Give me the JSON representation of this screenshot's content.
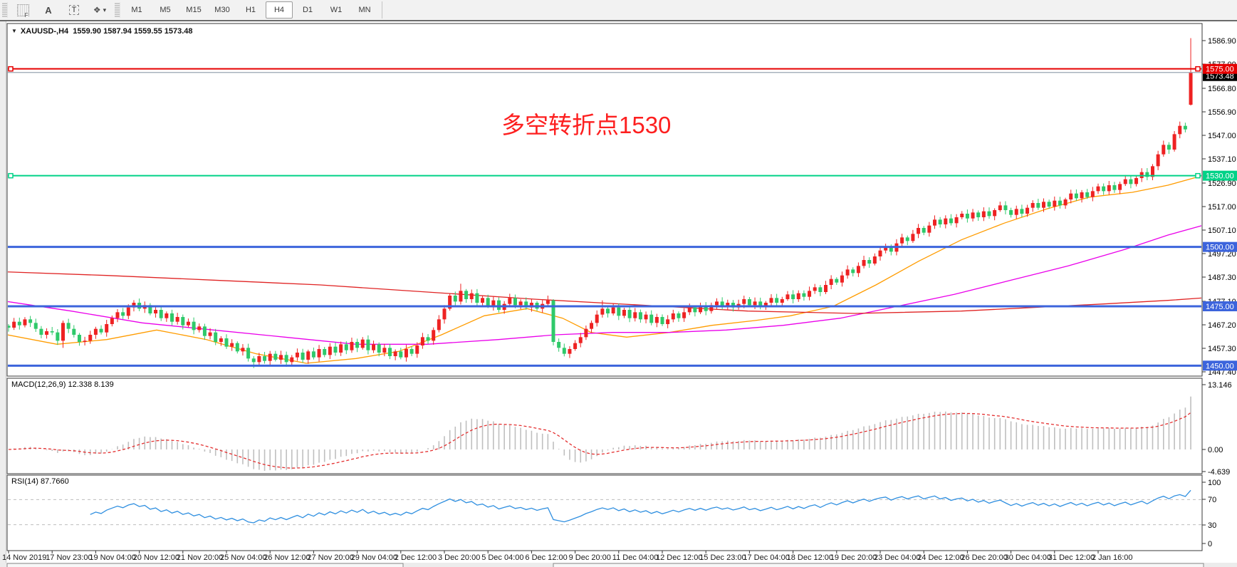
{
  "toolbar": {
    "tools": [
      {
        "name": "chart-grid-tool",
        "glyph": "F"
      },
      {
        "name": "text-annotation-tool",
        "glyph": "A"
      },
      {
        "name": "text-label-tool",
        "glyph": "T"
      },
      {
        "name": "shapes-tool",
        "glyph": "❖"
      },
      {
        "name": "shapes-dropdown",
        "glyph": "▾"
      }
    ],
    "timeframes": [
      "M1",
      "M5",
      "M15",
      "M30",
      "H1",
      "H4",
      "D1",
      "W1",
      "MN"
    ],
    "selected_timeframe": "H4"
  },
  "header": {
    "symbol": "XAUUSD-,H4",
    "ohlc_text": "1559.90 1587.94 1559.55 1573.48",
    "dropdown_glyph": "▼"
  },
  "annotation": {
    "text": "多空转折点1530",
    "color": "#fd1f1f"
  },
  "chart_data": [
    {
      "type": "candlestick",
      "title": "XAUUSD- H4",
      "convention": "red-up-green-down",
      "up_color": "#ee2222",
      "down_color": "#2fc96a",
      "last_bar": {
        "open": 1559.9,
        "high": 1587.94,
        "low": 1559.55,
        "close": 1573.48
      },
      "y_ticks": [
        "1586.90",
        "1577.00",
        "1566.80",
        "1556.90",
        "1547.00",
        "1537.10",
        "1526.90",
        "1517.00",
        "1507.10",
        "1497.20",
        "1487.30",
        "1477.10",
        "1467.20",
        "1457.30",
        "1447.40"
      ],
      "x_labels": [
        "14 Nov 2019",
        "17 Nov 23:00",
        "19 Nov 04:00",
        "20 Nov 12:00",
        "21 Nov 20:00",
        "25 Nov 04:00",
        "26 Nov 12:00",
        "27 Nov 20:00",
        "29 Nov 04:00",
        "2 Dec 12:00",
        "3 Dec 20:00",
        "5 Dec 04:00",
        "6 Dec 12:00",
        "9 Dec 20:00",
        "11 Dec 04:00",
        "12 Dec 12:00",
        "15 Dec 23:00",
        "17 Dec 04:00",
        "18 Dec 12:00",
        "19 Dec 20:00",
        "23 Dec 04:00",
        "24 Dec 12:00",
        "26 Dec 20:00",
        "30 Dec 04:00",
        "31 Dec 12:00",
        "2 Jan 16:00"
      ],
      "bars_per_label": 8,
      "closes": [
        1466.0,
        1468.5,
        1467.0,
        1469.5,
        1468.0,
        1465.5,
        1463.0,
        1464.5,
        1464.0,
        1460.5,
        1468.0,
        1465.5,
        1463.0,
        1460.0,
        1460.5,
        1463.0,
        1465.5,
        1464.0,
        1467.5,
        1470.0,
        1472.5,
        1471.0,
        1474.5,
        1476.5,
        1474.0,
        1475.5,
        1472.0,
        1473.5,
        1470.0,
        1472.0,
        1468.5,
        1470.5,
        1467.0,
        1468.5,
        1465.0,
        1466.5,
        1462.5,
        1464.0,
        1460.0,
        1461.5,
        1458.0,
        1459.5,
        1456.0,
        1457.5,
        1453.0,
        1451.5,
        1454.0,
        1452.0,
        1455.0,
        1452.5,
        1454.5,
        1451.5,
        1453.5,
        1455.5,
        1452.5,
        1456.0,
        1453.5,
        1457.0,
        1454.5,
        1458.0,
        1455.5,
        1459.0,
        1456.5,
        1460.0,
        1457.5,
        1461.0,
        1456.5,
        1459.0,
        1455.5,
        1457.5,
        1454.0,
        1456.0,
        1453.5,
        1457.0,
        1455.0,
        1458.5,
        1462.0,
        1460.5,
        1465.0,
        1469.5,
        1474.0,
        1479.5,
        1477.0,
        1481.5,
        1478.0,
        1480.5,
        1476.5,
        1478.5,
        1475.0,
        1477.5,
        1473.5,
        1476.0,
        1478.5,
        1475.5,
        1477.0,
        1474.5,
        1476.5,
        1474.0,
        1476.0,
        1477.5,
        1460.0,
        1457.5,
        1455.0,
        1457.0,
        1459.5,
        1462.0,
        1465.5,
        1468.0,
        1471.5,
        1474.0,
        1472.0,
        1474.5,
        1471.0,
        1473.5,
        1470.0,
        1472.5,
        1469.5,
        1471.5,
        1468.0,
        1470.5,
        1467.5,
        1469.5,
        1472.0,
        1470.0,
        1472.5,
        1474.5,
        1472.5,
        1475.0,
        1473.0,
        1475.5,
        1477.0,
        1475.0,
        1476.5,
        1474.5,
        1476.0,
        1478.0,
        1475.5,
        1477.0,
        1475.0,
        1476.5,
        1478.5,
        1476.5,
        1478.0,
        1480.0,
        1478.0,
        1480.5,
        1479.0,
        1481.5,
        1483.0,
        1481.0,
        1484.0,
        1486.5,
        1485.0,
        1488.0,
        1490.5,
        1489.0,
        1492.0,
        1494.5,
        1493.0,
        1496.0,
        1498.5,
        1500.0,
        1498.0,
        1501.5,
        1504.0,
        1502.5,
        1505.5,
        1508.0,
        1506.0,
        1509.0,
        1511.5,
        1509.5,
        1512.0,
        1510.0,
        1512.5,
        1514.0,
        1512.0,
        1514.5,
        1512.5,
        1515.0,
        1513.0,
        1515.5,
        1517.5,
        1515.5,
        1513.5,
        1516.0,
        1514.0,
        1516.5,
        1518.5,
        1516.5,
        1519.0,
        1517.0,
        1519.5,
        1517.5,
        1520.0,
        1522.5,
        1520.5,
        1523.0,
        1521.0,
        1523.5,
        1525.5,
        1523.5,
        1526.0,
        1524.0,
        1526.5,
        1528.5,
        1526.5,
        1529.0,
        1531.5,
        1529.5,
        1534.0,
        1539.0,
        1543.0,
        1541.0,
        1547.5,
        1551.0,
        1549.5,
        1573.48
      ],
      "special_wicks": {
        "10": {
          "low": 1457.5
        },
        "45": {
          "low": 1449.0
        },
        "51": {
          "low": 1449.5
        },
        "83": {
          "high": 1484.5
        },
        "99": {
          "high": 1479.5
        },
        "100": {
          "high": 1478.0
        },
        "109": {
          "high": 1477.5
        },
        "217": {
          "high": 1587.94,
          "low": 1559.55
        }
      },
      "hlines": [
        {
          "label": "1575.00",
          "value": 1575.0,
          "color": "#e60000",
          "width": 2,
          "end_markers": true
        },
        {
          "label": "1530.00",
          "value": 1530.0,
          "color": "#00d287",
          "width": 2,
          "end_markers": true
        },
        {
          "label": "1500.00",
          "value": 1500.0,
          "color": "#3c64dc",
          "width": 3,
          "end_markers": false
        },
        {
          "label": "1475.00",
          "value": 1475.0,
          "color": "#3c64dc",
          "width": 3,
          "end_markers": false
        },
        {
          "label": "1450.00",
          "value": 1450.0,
          "color": "#3c64dc",
          "width": 3,
          "end_markers": false
        }
      ],
      "current_price": {
        "label": "1573.48",
        "value": 1573.48,
        "line_color": "#9aa6b2",
        "label_bg": "#000000",
        "label_fg": "#ffffff"
      },
      "moving_averages": [
        {
          "name": "ma-fast",
          "color": "#ff9c00",
          "points": [
            [
              10,
              1463
            ],
            [
              80,
              1459
            ],
            [
              150,
              1461
            ],
            [
              220,
              1465
            ],
            [
              290,
              1461
            ],
            [
              360,
              1455
            ],
            [
              430,
              1451
            ],
            [
              500,
              1453
            ],
            [
              560,
              1456
            ],
            [
              620,
              1463
            ],
            [
              680,
              1471
            ],
            [
              740,
              1474
            ],
            [
              790,
              1470
            ],
            [
              830,
              1464
            ],
            [
              880,
              1462
            ],
            [
              940,
              1464
            ],
            [
              1000,
              1467
            ],
            [
              1060,
              1469
            ],
            [
              1110,
              1471
            ],
            [
              1170,
              1475
            ],
            [
              1230,
              1484
            ],
            [
              1290,
              1494
            ],
            [
              1350,
              1503
            ],
            [
              1410,
              1510
            ],
            [
              1470,
              1516
            ],
            [
              1530,
              1521
            ],
            [
              1590,
              1523
            ],
            [
              1640,
              1526
            ],
            [
              1688,
              1530
            ]
          ]
        },
        {
          "name": "ma-medium",
          "color": "#ea00ea",
          "points": [
            [
              10,
              1477
            ],
            [
              100,
              1473
            ],
            [
              200,
              1468
            ],
            [
              300,
              1465
            ],
            [
              400,
              1462
            ],
            [
              500,
              1459
            ],
            [
              600,
              1459
            ],
            [
              700,
              1461
            ],
            [
              780,
              1463
            ],
            [
              860,
              1464
            ],
            [
              940,
              1464
            ],
            [
              1020,
              1465
            ],
            [
              1100,
              1467
            ],
            [
              1180,
              1470
            ],
            [
              1260,
              1475
            ],
            [
              1340,
              1480
            ],
            [
              1420,
              1486
            ],
            [
              1500,
              1492
            ],
            [
              1580,
              1499
            ],
            [
              1640,
              1505
            ],
            [
              1688,
              1509
            ]
          ]
        },
        {
          "name": "ma-slow",
          "color": "#e02424",
          "points": [
            [
              10,
              1489.5
            ],
            [
              150,
              1488
            ],
            [
              300,
              1486
            ],
            [
              450,
              1484
            ],
            [
              600,
              1481
            ],
            [
              750,
              1478
            ],
            [
              900,
              1475.5
            ],
            [
              1050,
              1473
            ],
            [
              1200,
              1472
            ],
            [
              1350,
              1473
            ],
            [
              1450,
              1474.5
            ],
            [
              1550,
              1476
            ],
            [
              1640,
              1477.5
            ],
            [
              1688,
              1478.5
            ]
          ]
        }
      ]
    },
    {
      "type": "macd",
      "label": "MACD(12,26,9) 12.338 8.139",
      "params": [
        12,
        26,
        9
      ],
      "macd_value": 12.338,
      "signal_value": 8.139,
      "y_ticks": [
        "13.146",
        "0.00",
        "-4.639"
      ],
      "histogram_color": "#bfbfbf",
      "signal_color": "#e43030"
    },
    {
      "type": "rsi",
      "label": "RSI(14) 87.7660",
      "period": 14,
      "value": 87.766,
      "y_ticks": [
        "100",
        "70",
        "30",
        "0"
      ],
      "levels": [
        70,
        30
      ],
      "line_color": "#2f8fe0"
    }
  ]
}
